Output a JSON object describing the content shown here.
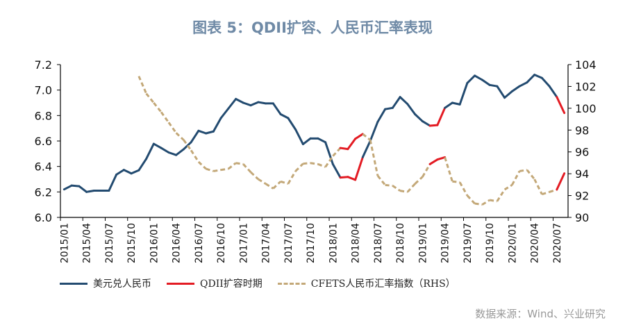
{
  "title": "图表 5：QDII扩容、人民币汇率表现",
  "source": "数据来源：Wind、兴业研究",
  "colors": {
    "usdcny": "#234b70",
    "qdii": "#e31b23",
    "cfets": "#c3a878",
    "title": "#6f8aa6"
  },
  "chart_data": {
    "type": "line",
    "title": "图表 5：QDII扩容、人民币汇率表现",
    "x": [
      "2015/01",
      "2015/02",
      "2015/03",
      "2015/04",
      "2015/05",
      "2015/06",
      "2015/07",
      "2015/08",
      "2015/09",
      "2015/10",
      "2015/11",
      "2015/12",
      "2016/01",
      "2016/02",
      "2016/03",
      "2016/04",
      "2016/05",
      "2016/06",
      "2016/07",
      "2016/08",
      "2016/09",
      "2016/10",
      "2016/11",
      "2016/12",
      "2017/01",
      "2017/02",
      "2017/03",
      "2017/04",
      "2017/05",
      "2017/06",
      "2017/07",
      "2017/08",
      "2017/09",
      "2017/10",
      "2017/11",
      "2017/12",
      "2018/01",
      "2018/02",
      "2018/03",
      "2018/04",
      "2018/05",
      "2018/06",
      "2018/07",
      "2018/08",
      "2018/09",
      "2018/10",
      "2018/11",
      "2018/12",
      "2019/01",
      "2019/02",
      "2019/03",
      "2019/04",
      "2019/05",
      "2019/06",
      "2019/07",
      "2019/08",
      "2019/09",
      "2019/10",
      "2019/11",
      "2019/12",
      "2020/01",
      "2020/02",
      "2020/03",
      "2020/04",
      "2020/05",
      "2020/06",
      "2020/07",
      "2020/08"
    ],
    "x_tick_labels": [
      "2015/01",
      "2015/04",
      "2015/07",
      "2015/10",
      "2016/01",
      "2016/04",
      "2016/07",
      "2016/10",
      "2017/01",
      "2017/04",
      "2017/07",
      "2017/10",
      "2018/01",
      "2018/04",
      "2018/07",
      "2018/10",
      "2019/01",
      "2019/04",
      "2019/07",
      "2019/10",
      "2020/01",
      "2020/04",
      "2020/07"
    ],
    "y_left": {
      "range": [
        6.0,
        7.2
      ],
      "ticks": [
        "6.0",
        "6.2",
        "6.4",
        "6.6",
        "6.8",
        "7.0",
        "7.2"
      ]
    },
    "y_right": {
      "range": [
        90,
        104
      ],
      "ticks": [
        "90",
        "92",
        "94",
        "96",
        "98",
        "100",
        "102",
        "104"
      ]
    },
    "grid": false,
    "legend_position": "bottom",
    "series": [
      {
        "name": "美元兑人民币",
        "axis": "left",
        "style": "solid",
        "values": [
          6.22,
          6.25,
          6.245,
          6.2,
          6.21,
          6.21,
          6.21,
          6.336,
          6.373,
          6.345,
          6.37,
          6.46,
          6.578,
          6.545,
          6.51,
          6.49,
          6.535,
          6.59,
          6.68,
          6.66,
          6.675,
          6.78,
          6.855,
          6.93,
          6.9,
          6.88,
          6.905,
          6.895,
          6.895,
          6.81,
          6.78,
          6.69,
          6.575,
          6.62,
          6.62,
          6.59,
          6.418,
          6.313,
          6.318,
          6.295,
          6.473,
          6.6,
          6.75,
          6.85,
          6.86,
          6.945,
          6.89,
          6.81,
          6.755,
          6.72,
          6.725,
          6.86,
          6.9,
          6.887,
          7.055,
          7.113,
          7.08,
          7.04,
          7.03,
          6.94,
          6.99,
          7.03,
          7.06,
          7.12,
          7.095,
          7.03,
          6.945,
          6.82
        ]
      },
      {
        "name": "CFETS人民币汇率指数（RHS）",
        "axis": "right",
        "style": "dashed",
        "values": [
          null,
          null,
          null,
          null,
          null,
          null,
          null,
          null,
          null,
          null,
          102.94,
          101.35,
          100.5,
          99.65,
          98.7,
          97.74,
          97.1,
          96.15,
          95.09,
          94.45,
          94.24,
          94.35,
          94.45,
          94.98,
          94.88,
          94.14,
          93.5,
          93.08,
          92.65,
          93.29,
          93.08,
          94.24,
          94.92,
          94.98,
          94.88,
          94.62,
          95.62,
          96.36,
          96.26,
          97.2,
          97.64,
          97.1,
          93.82,
          92.97,
          92.9,
          92.44,
          92.33,
          93.08,
          93.71,
          94.88,
          95.3,
          95.51,
          93.29,
          93.22,
          92.0,
          91.27,
          91.17,
          91.59,
          91.48,
          92.55,
          92.97,
          94.24,
          94.35,
          93.5,
          92.12,
          92.33,
          92.55,
          94.03
        ]
      }
    ],
    "highlight": {
      "name": "QDII扩容时期",
      "periods": [
        [
          "2018/02",
          "2018/05"
        ],
        [
          "2019/02",
          "2019/04"
        ],
        [
          "2020/07",
          "2020/08"
        ]
      ]
    }
  }
}
